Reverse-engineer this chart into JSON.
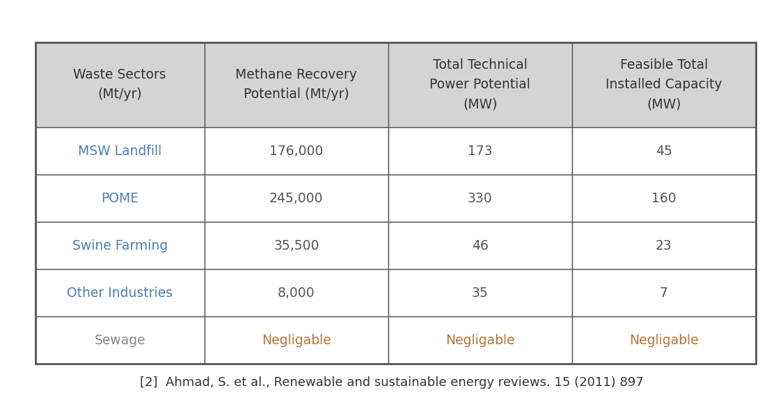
{
  "headers": [
    "Waste Sectors\n(Mt/yr)",
    "Methane Recovery\nPotential (Mt/yr)",
    "Total Technical\nPower Potential\n(MW)",
    "Feasible Total\nInstalled Capacity\n(MW)"
  ],
  "rows": [
    [
      "MSW Landfill",
      "176,000",
      "173",
      "45"
    ],
    [
      "POME",
      "245,000",
      "330",
      "160"
    ],
    [
      "Swine Farming",
      "35,500",
      "46",
      "23"
    ],
    [
      "Other Industries",
      "8,000",
      "35",
      "7"
    ],
    [
      "Sewage",
      "Negligable",
      "Negligable",
      "Negligable"
    ]
  ],
  "header_bg": "#d4d4d4",
  "row_bg": "#ffffff",
  "border_color": "#555555",
  "header_text_color": "#333333",
  "sector_col_color": "#4a7fb5",
  "data_col_color": "#555555",
  "negligable_color": "#b87333",
  "sewage_sector_color": "#888888",
  "caption": "[2]  Ahmad, S. et al., Renewable and sustainable energy reviews. 15 (2011) 897",
  "fig_bg": "#ffffff",
  "font_size": 13.5,
  "header_font_size": 13.5,
  "caption_font_size": 13.0
}
